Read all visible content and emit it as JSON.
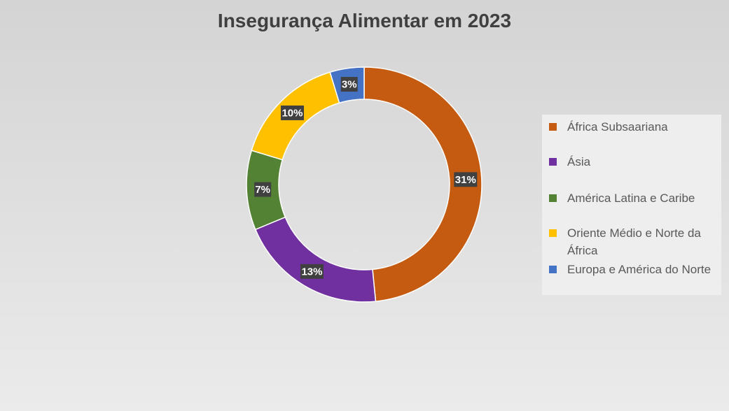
{
  "chart_data": {
    "type": "pie",
    "subtype": "donut",
    "title": "Insegurança Alimentar em 2023",
    "categories": [
      "África Subsaariana",
      "Ásia",
      "América Latina e Caribe",
      "Oriente Médio e Norte da África",
      "Europa e América do Norte"
    ],
    "values": [
      31,
      13,
      7,
      10,
      3
    ],
    "data_labels": [
      "31%",
      "13%",
      "7%",
      "10%",
      "3%"
    ],
    "colors": [
      "#C55A11",
      "#7030A0",
      "#548235",
      "#FFC000",
      "#4472C4"
    ],
    "legend_position": "right"
  }
}
